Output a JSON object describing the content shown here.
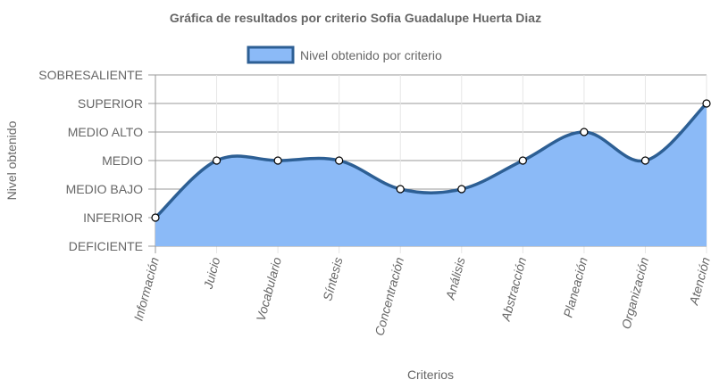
{
  "chart_data": {
    "type": "area",
    "title": "Gráfica de resultados por criterio Sofia Guadalupe Huerta Diaz",
    "xlabel": "Criterios",
    "ylabel": "Nivel obtenido",
    "y_levels": [
      "DEFICIENTE",
      "INFERIOR",
      "MEDIO BAJO",
      "MEDIO",
      "MEDIO ALTO",
      "SUPERIOR",
      "SOBRESALIENTE"
    ],
    "categories": [
      "Información",
      "Juicio",
      "Vocabulario",
      "Síntesis",
      "Concentración",
      "Análisis",
      "Abstracción",
      "Planeación",
      "Organización",
      "Atención"
    ],
    "series": [
      {
        "name": "Nivel obtenido por criterio",
        "values": [
          "INFERIOR",
          "MEDIO",
          "MEDIO",
          "MEDIO",
          "MEDIO BAJO",
          "MEDIO BAJO",
          "MEDIO",
          "MEDIO ALTO",
          "MEDIO",
          "SUPERIOR"
        ],
        "fill_color": "#8bbaf7",
        "line_color": "#2d5f94"
      }
    ],
    "legend": "top",
    "grid": true
  }
}
